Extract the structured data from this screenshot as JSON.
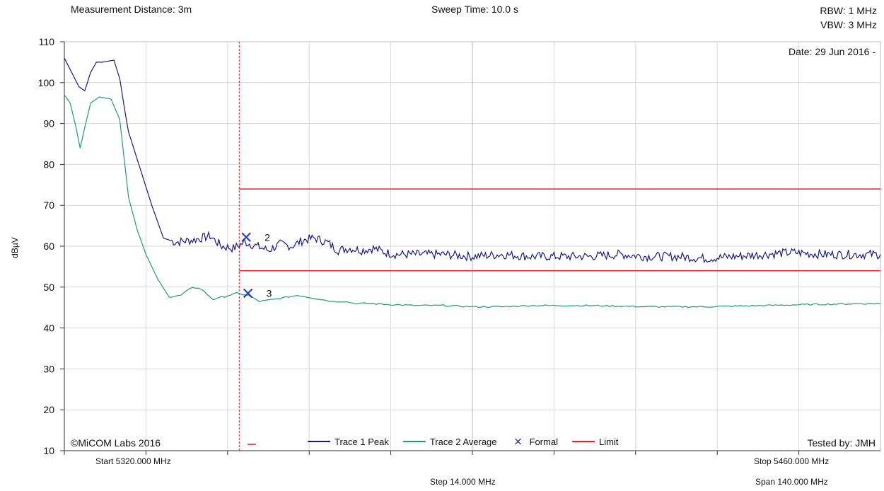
{
  "header": {
    "measurement_distance": "Measurement Distance: 3m",
    "sweep_time": "Sweep Time: 10.0 s",
    "rbw": "RBW: 1 MHz",
    "vbw": "VBW: 3 MHz"
  },
  "plot_labels": {
    "date": "Date: 29 Jun 2016 -",
    "copyright": "©MiCOM Labs 2016",
    "tested_by": "Tested by: JMH"
  },
  "footer": {
    "start": "Start 5320.000 MHz",
    "stop": "Stop 5460.000 MHz",
    "step": "Step 14.000 MHz",
    "span": "Span 140.000 MHz"
  },
  "colors": {
    "peak": "#1a1a80",
    "average": "#1f9a7a",
    "limit": "#ee1c24",
    "marker": "#2a3fc9",
    "grid": "#d9d9d9"
  },
  "chart_data": {
    "type": "line",
    "ylabel": "dBµV",
    "xlabel": "",
    "ylim": [
      10,
      110
    ],
    "xlim": [
      5320,
      5460
    ],
    "yticks": [
      10,
      20,
      30,
      40,
      50,
      60,
      70,
      80,
      90,
      100,
      110
    ],
    "grid": true,
    "legend_position": "bottom",
    "legend": [
      {
        "label": "Trace 1 Peak",
        "kind": "line",
        "color": "#1a1a80"
      },
      {
        "label": "Trace 2 Average",
        "kind": "line",
        "color": "#1f9a7a"
      },
      {
        "label": "Formal",
        "kind": "marker",
        "color": "#2a3fc9"
      },
      {
        "label": "Limit",
        "kind": "line",
        "color": "#ee1c24"
      }
    ],
    "series": [
      {
        "name": "Trace 1 Peak",
        "x": [
          5320.0,
          5322.5,
          5323.5,
          5324.5,
          5325.5,
          5326.5,
          5328.5,
          5329.5,
          5330.5,
          5331.0,
          5333.0,
          5335.0,
          5337.0,
          5339.0,
          5342.0,
          5345.0,
          5347.0,
          5349.0,
          5351.0,
          5353.0,
          5355.0,
          5357.0,
          5359.0,
          5361.0,
          5363.0,
          5365.0,
          5367.0,
          5369.0,
          5371.0,
          5373.0,
          5375.0,
          5377.0,
          5380.0,
          5385.0,
          5390.0,
          5395.0,
          5400.0,
          5405.0,
          5410.0,
          5415.0,
          5420.0,
          5425.0,
          5430.0,
          5435.0,
          5440.0,
          5445.0,
          5450.0,
          5455.0,
          5460.0
        ],
        "values": [
          106.0,
          99.0,
          98.0,
          102.5,
          105.0,
          105.0,
          105.5,
          101.0,
          92.0,
          88.0,
          79.0,
          70.0,
          62.0,
          61.0,
          61.5,
          62.5,
          60.0,
          59.5,
          61.0,
          60.0,
          59.0,
          60.5,
          60.0,
          61.5,
          62.0,
          61.0,
          59.0,
          59.5,
          59.0,
          59.5,
          58.5,
          58.0,
          58.0,
          58.0,
          57.5,
          58.0,
          57.5,
          57.5,
          57.5,
          58.0,
          57.5,
          57.5,
          57.0,
          57.5,
          58.0,
          58.5,
          58.0,
          58.0,
          58.0
        ]
      },
      {
        "name": "Trace 2 Average",
        "x": [
          5320.0,
          5321.0,
          5322.0,
          5322.7,
          5323.5,
          5324.5,
          5326.0,
          5328.0,
          5329.5,
          5331.0,
          5332.5,
          5334.0,
          5336.0,
          5338.0,
          5340.0,
          5342.0,
          5343.5,
          5345.5,
          5347.0,
          5349.5,
          5351.5,
          5353.5,
          5356.0,
          5358.0,
          5360.0,
          5362.0,
          5364.0,
          5366.0,
          5368.0,
          5370.0,
          5372.0,
          5375.0,
          5380.0,
          5385.0,
          5390.0,
          5395.0,
          5400.0,
          5410.0,
          5420.0,
          5430.0,
          5440.0,
          5450.0,
          5460.0
        ],
        "values": [
          97.0,
          95.0,
          89.0,
          84.0,
          89.0,
          95.0,
          96.5,
          96.0,
          91.0,
          72.0,
          64.0,
          58.0,
          52.0,
          47.5,
          48.0,
          50.0,
          49.5,
          47.0,
          47.5,
          48.5,
          48.0,
          46.5,
          47.0,
          47.5,
          48.0,
          47.5,
          47.0,
          46.5,
          46.5,
          46.0,
          46.0,
          45.8,
          45.5,
          45.5,
          45.2,
          45.2,
          45.5,
          45.5,
          45.2,
          45.2,
          45.5,
          45.8,
          46.0
        ]
      },
      {
        "name": "Limit",
        "x": [
          5350.0,
          5460.0
        ],
        "values": [
          74.0,
          74.0
        ]
      },
      {
        "name": "Limit",
        "x": [
          5350.0,
          5460.0
        ],
        "values": [
          54.0,
          54.0
        ]
      }
    ],
    "vertical_line": {
      "x": 5350.0
    },
    "markers": [
      {
        "label": "2",
        "x": 5351.2,
        "y": 62.2
      },
      {
        "label": "3",
        "x": 5351.5,
        "y": 48.5
      }
    ]
  }
}
